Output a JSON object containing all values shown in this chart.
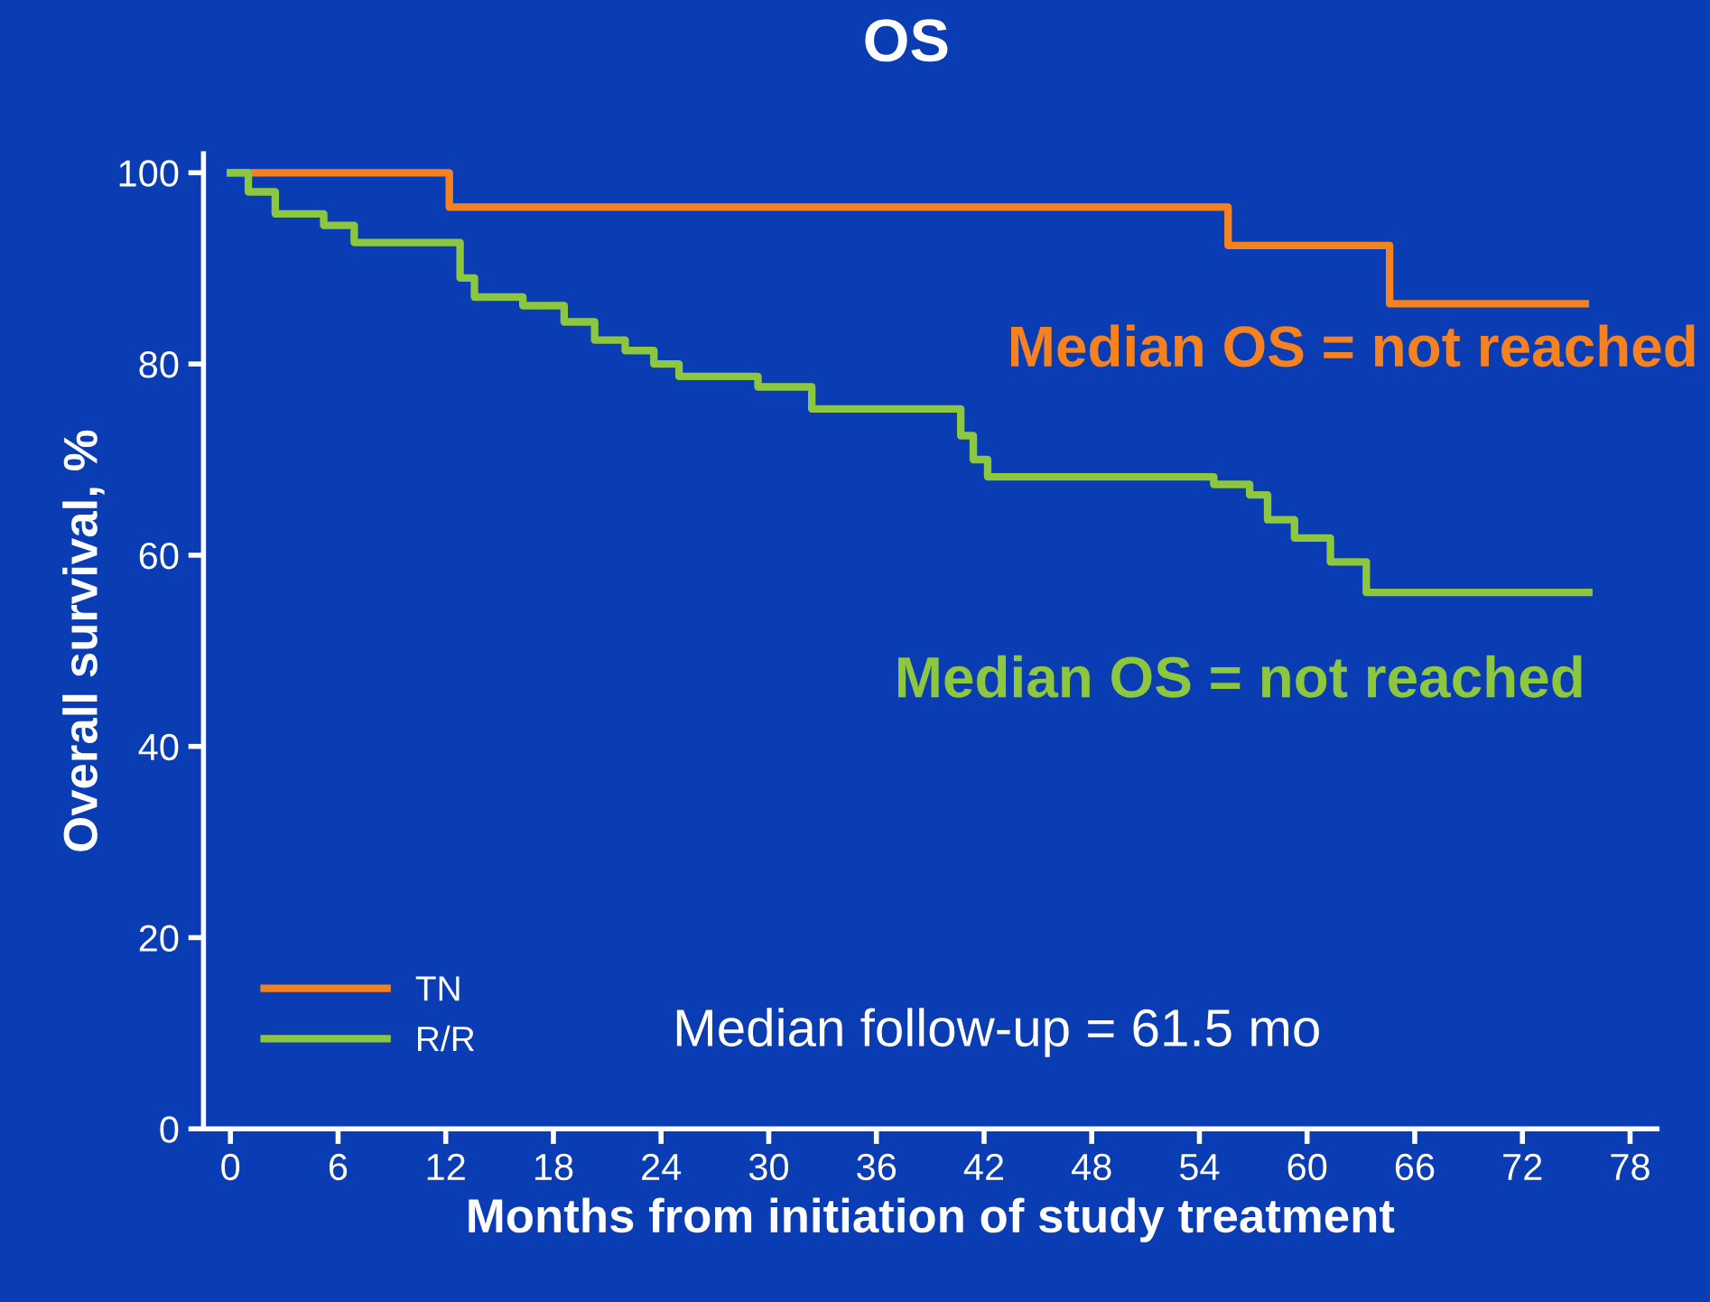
{
  "chart_data": {
    "type": "step",
    "title": "OS",
    "xlabel": "Months from initiation of study treatment",
    "ylabel": "Overall survival, %",
    "xlim": [
      -1.5,
      79.5
    ],
    "ylim": [
      0,
      102
    ],
    "xticks": [
      0,
      6,
      12,
      18,
      24,
      30,
      36,
      42,
      48,
      54,
      60,
      66,
      72,
      78
    ],
    "yticks": [
      0,
      20,
      40,
      60,
      80,
      100
    ],
    "grid": false,
    "legend": "bottom left",
    "series": [
      {
        "name": "TN",
        "color": "#f5821f",
        "x": [
          0,
          12.2,
          55.6,
          64.6,
          75.5
        ],
        "values": [
          100,
          96.4,
          92.4,
          86.3,
          86.3
        ]
      },
      {
        "name": "R/R",
        "color": "#8dc63f",
        "x": [
          0,
          1.0,
          2.5,
          5.2,
          6.9,
          12.0,
          12.8,
          13.6,
          16.3,
          18.6,
          20.3,
          22.0,
          23.6,
          25.0,
          29.4,
          32.4,
          40.1,
          40.7,
          41.4,
          42.2,
          54.8,
          56.8,
          57.8,
          59.3,
          61.3,
          63.3,
          75.7
        ],
        "values": [
          100,
          98,
          95.7,
          94.5,
          92.7,
          92.7,
          89,
          87,
          86.1,
          84.4,
          82.5,
          81.4,
          80,
          78.7,
          77.6,
          75.3,
          75.3,
          72.5,
          70,
          68.2,
          67.4,
          66.3,
          63.7,
          61.8,
          59.3,
          56.1,
          56.1
        ]
      }
    ],
    "annotations": [
      "Median OS = not reached",
      "Median OS = not reached",
      "Median follow-up = 61.5 mo"
    ]
  }
}
